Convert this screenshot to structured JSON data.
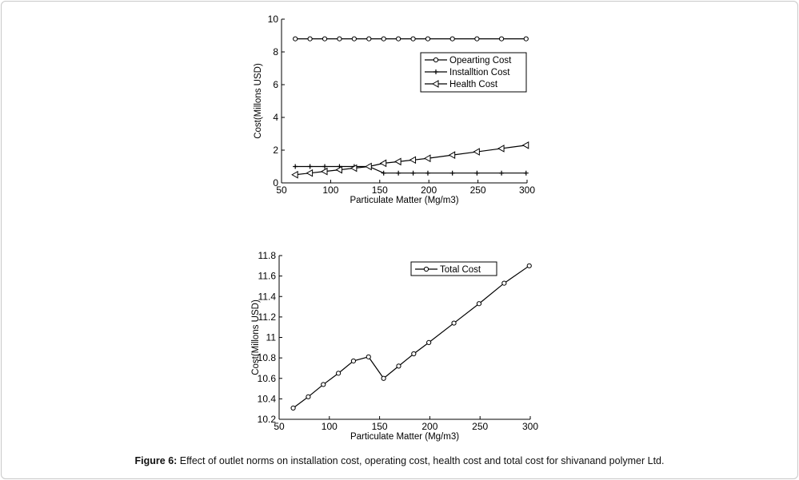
{
  "chart_data": [
    {
      "type": "line",
      "title": "",
      "xlabel": "Particulate Matter (Mg/m3)",
      "ylabel": "Cost(Millons USD)",
      "xlim": [
        50,
        300
      ],
      "ylim": [
        0,
        10
      ],
      "xticks": [
        "50",
        "100",
        "150",
        "200",
        "250",
        "300"
      ],
      "yticks": [
        "0",
        "2",
        "4",
        "6",
        "8",
        "10"
      ],
      "grid": false,
      "legend_position": "top-right",
      "x": [
        64,
        79,
        94,
        109,
        124,
        139,
        154,
        169,
        184,
        199,
        224,
        249,
        274,
        299
      ],
      "series": [
        {
          "name": "Opearting Cost",
          "marker": "circle",
          "values": [
            8.8,
            8.8,
            8.8,
            8.8,
            8.8,
            8.8,
            8.8,
            8.8,
            8.8,
            8.8,
            8.8,
            8.8,
            8.8,
            8.8
          ]
        },
        {
          "name": "Installtion Cost",
          "marker": "plus",
          "values": [
            1.0,
            1.0,
            1.0,
            1.0,
            1.0,
            1.0,
            0.6,
            0.6,
            0.6,
            0.6,
            0.6,
            0.6,
            0.6,
            0.6
          ]
        },
        {
          "name": "Health Cost",
          "marker": "triangle-left",
          "values": [
            0.5,
            0.6,
            0.7,
            0.8,
            0.9,
            1.0,
            1.2,
            1.3,
            1.4,
            1.5,
            1.7,
            1.9,
            2.1,
            2.3
          ]
        }
      ]
    },
    {
      "type": "line",
      "title": "",
      "xlabel": "Particulate Matter (Mg/m3)",
      "ylabel": "Cost(Millons USD)",
      "xlim": [
        50,
        300
      ],
      "ylim": [
        10.2,
        11.8
      ],
      "xticks": [
        "50",
        "100",
        "150",
        "200",
        "250",
        "300"
      ],
      "yticks": [
        "10.2",
        "10.4",
        "10.6",
        "10.8",
        "11",
        "11.2",
        "11.4",
        "11.6",
        "11.8"
      ],
      "grid": false,
      "legend_position": "top-right",
      "x": [
        64,
        79,
        94,
        109,
        124,
        139,
        154,
        169,
        184,
        199,
        224,
        249,
        274,
        299
      ],
      "series": [
        {
          "name": "Total Cost",
          "marker": "circle",
          "values": [
            10.31,
            10.42,
            10.54,
            10.65,
            10.77,
            10.81,
            10.6,
            10.72,
            10.84,
            10.95,
            11.14,
            11.33,
            11.53,
            11.7
          ]
        }
      ]
    }
  ],
  "caption": {
    "label": "Figure 6:",
    "text": " Effect of outlet norms on installation cost, operating cost, health cost and total cost for shivanand polymer Ltd."
  }
}
